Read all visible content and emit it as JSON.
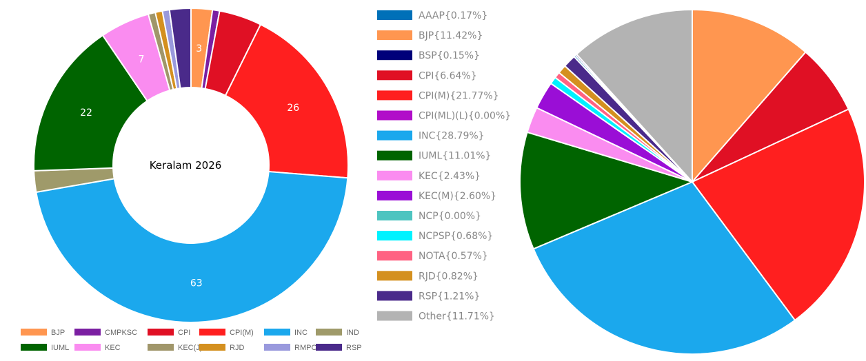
{
  "chart_data": [
    {
      "type": "doughnut",
      "center_text": "Keralam 2026",
      "legend_position": "bottom",
      "categories": [
        "BJP",
        "CMPKSC",
        "CPI",
        "CPI(M)",
        "INC",
        "IND",
        "IUML",
        "KEC",
        "KEC(J)",
        "RJD",
        "RMPOI",
        "RSP"
      ],
      "slices": [
        {
          "name": "BJP",
          "value": 3,
          "color": "#FF9650",
          "label": "3"
        },
        {
          "name": "CMPKSC",
          "value": 1,
          "color": "#7B1FA2",
          "label": ""
        },
        {
          "name": "CPI",
          "value": 6,
          "color": "#E01024",
          "label": ""
        },
        {
          "name": "CPI(M)",
          "value": 26,
          "color": "#FF1F1F",
          "label": "26"
        },
        {
          "name": "INC",
          "value": 63,
          "color": "#1BA8ED",
          "label": "63"
        },
        {
          "name": "IND",
          "value": 3,
          "color": "#9F9A6A",
          "label": ""
        },
        {
          "name": "IUML",
          "value": 22,
          "color": "#006400",
          "label": "22"
        },
        {
          "name": "KEC",
          "value": 7,
          "color": "#FA8CF0",
          "label": "7"
        },
        {
          "name": "KEC(J)",
          "value": 1,
          "color": "#A0966A",
          "label": ""
        },
        {
          "name": "RJD",
          "value": 1,
          "color": "#D4901F",
          "label": ""
        },
        {
          "name": "RMPOI",
          "value": 1,
          "color": "#9999DD",
          "label": ""
        },
        {
          "name": "RSP",
          "value": 3,
          "color": "#4A2A8A",
          "label": ""
        }
      ]
    },
    {
      "type": "pie",
      "legend_position": "left",
      "series": [
        {
          "name": "AAAP",
          "percent": 0.17,
          "color": "#0070B8",
          "legend": "AAAP{0.17%}"
        },
        {
          "name": "BJP",
          "percent": 11.42,
          "color": "#FF9650",
          "legend": "BJP{11.42%}"
        },
        {
          "name": "BSP",
          "percent": 0.15,
          "color": "#00007A",
          "legend": "BSP{0.15%}"
        },
        {
          "name": "CPI",
          "percent": 6.64,
          "color": "#E01024",
          "legend": "CPI{6.64%}"
        },
        {
          "name": "CPI(M)",
          "percent": 21.77,
          "color": "#FF1F1F",
          "legend": "CPI(M){21.77%}"
        },
        {
          "name": "CPI(ML)(L)",
          "percent": 0.0,
          "color": "#B10DC9",
          "legend": "CPI(ML)(L){0.00%}"
        },
        {
          "name": "INC",
          "percent": 28.79,
          "color": "#1BA8ED",
          "legend": "INC{28.79%}"
        },
        {
          "name": "IUML",
          "percent": 11.01,
          "color": "#006400",
          "legend": "IUML{11.01%}"
        },
        {
          "name": "KEC",
          "percent": 2.43,
          "color": "#FA8CF0",
          "legend": "KEC{2.43%}"
        },
        {
          "name": "KEC(M)",
          "percent": 2.6,
          "color": "#9A0ED6",
          "legend": "KEC(M){2.60%}"
        },
        {
          "name": "NCP",
          "percent": 0.0,
          "color": "#4DC4C0",
          "legend": "NCP{0.00%}"
        },
        {
          "name": "NCPSP",
          "percent": 0.68,
          "color": "#00F2FF",
          "legend": "NCPSP{0.68%}"
        },
        {
          "name": "NOTA",
          "percent": 0.57,
          "color": "#FF6282",
          "legend": "NOTA{0.57%}"
        },
        {
          "name": "RJD",
          "percent": 0.82,
          "color": "#D4901F",
          "legend": "RJD{0.82%}"
        },
        {
          "name": "RSP",
          "percent": 1.21,
          "color": "#4A2A8A",
          "legend": "RSP{1.21%}"
        },
        {
          "name": "Other",
          "percent": 11.71,
          "color": "#B3B3B3",
          "legend": "Other{11.71%}"
        }
      ]
    }
  ]
}
